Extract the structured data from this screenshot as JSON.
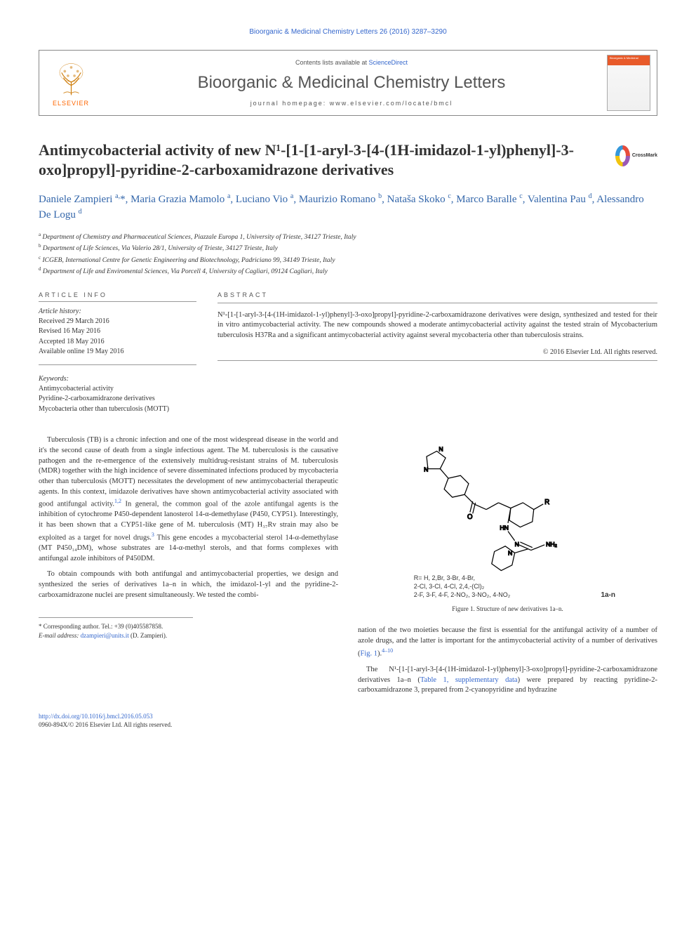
{
  "citation": "Bioorganic & Medicinal Chemistry Letters 26 (2016) 3287–3290",
  "header": {
    "contents_prefix": "Contents lists available at ",
    "contents_link": "ScienceDirect",
    "journal": "Bioorganic & Medicinal Chemistry Letters",
    "homepage_prefix": "journal homepage: ",
    "homepage": "www.elsevier.com/locate/bmcl",
    "logo_text": "ELSEVIER",
    "cover_title1": "Bioorganic & Medicinal",
    "cover_title2": "Chemistry Letters"
  },
  "crossmark_label": "CrossMark",
  "title": "Antimycobacterial activity of new N¹-[1-[1-aryl-3-[4-(1H-imidazol-1-yl)phenyl]-3-oxo]propyl]-pyridine-2-carboxamidrazone derivatives",
  "authors_html": "Daniele Zampieri <sup>a,</sup>*, Maria Grazia Mamolo <sup>a</sup>, Luciano Vio <sup>a</sup>, Maurizio Romano <sup>b</sup>, Nataša Skoko <sup>c</sup>, Marco Baralle <sup>c</sup>, Valentina Pau <sup>d</sup>, Alessandro De Logu <sup>d</sup>",
  "affiliations": [
    {
      "sup": "a",
      "text": "Department of Chemistry and Pharmaceutical Sciences, Piazzale Europa 1, University of Trieste, 34127 Trieste, Italy"
    },
    {
      "sup": "b",
      "text": "Department of Life Sciences, Via Valerio 28/1, University of Trieste, 34127 Trieste, Italy"
    },
    {
      "sup": "c",
      "text": "ICGEB, International Centre for Genetic Engineering and Biotechnology, Padriciano 99, 34149 Trieste, Italy"
    },
    {
      "sup": "d",
      "text": "Department of Life and Enviromental Sciences, Via Porcell 4, University of Cagliari, 09124 Cagliari, Italy"
    }
  ],
  "article_info": {
    "section_label": "ARTICLE INFO",
    "history_label": "Article history:",
    "history": [
      "Received 29 March 2016",
      "Revised 16 May 2016",
      "Accepted 18 May 2016",
      "Available online 19 May 2016"
    ],
    "keywords_label": "Keywords:",
    "keywords": [
      "Antimycobacterial activity",
      "Pyridine-2-carboxamidrazone derivatives",
      "Mycobacteria other than tuberculosis (MOTT)"
    ]
  },
  "abstract": {
    "section_label": "ABSTRACT",
    "text": "N¹-[1-[1-aryl-3-[4-(1H-imidazol-1-yl)phenyl]-3-oxo]propyl]-pyridine-2-carboxamidrazone derivatives were design, synthesized and tested for their in vitro antimycobacterial activity. The new compounds showed a moderate antimycobacterial activity against the tested strain of Mycobacterium tuberculosis H37Ra and a significant antimycobacterial activity against several mycobacteria other than tuberculosis strains.",
    "copyright": "© 2016 Elsevier Ltd. All rights reserved."
  },
  "body": {
    "left_para1": "Tuberculosis (TB) is a chronic infection and one of the most widespread disease in the world and it's the second cause of death from a single infectious agent. The M. tuberculosis is the causative pathogen and the re-emergence of the extensively multidrug-resistant strains of M. tuberculosis (MDR) together with the high incidence of severe disseminated infections produced by mycobacteria other than tuberculosis (MOTT) necessitates the development of new antimycobacterial therapeutic agents. In this context, imidazole derivatives have shown antimycobacterial activity associated with good antifungal activity.",
    "left_para1_ref": "1,2",
    "left_para1_cont": " In general, the common goal of the azole antifungal agents is the inhibition of cytochrome P450-dependent lanosterol 14-α-demethylase (P450, CYP51). Interestingly, it has been shown that a CYP51-like gene of M. tuberculosis (MT) H₃₇Rv strain may also be exploited as a target for novel drugs.",
    "left_para1_ref2": "3",
    "left_para1_cont2": " This gene encodes a mycobacterial sterol 14-α-demethylase (MT P450₁₄DM), whose substrates are 14-α-methyl sterols, and that forms complexes with antifungal azole inhibitors of P450DM.",
    "left_para2": "To obtain compounds with both antifungal and antimycobacterial properties, we design and synthesized the series of derivatives 1a–n in which, the imidazol-1-yl and the pyridine-2-carboxamidrazone nuclei are present simultaneously. We tested the combi-",
    "right_para1": "nation of the two moieties because the first is essential for the antifungal activity of a number of azole drugs, and the latter is important for the antimycobacterial activity of a number of derivatives (",
    "right_fig_link": "Fig. 1",
    "right_para1_cont": ").",
    "right_refs": "4–10",
    "right_para2_a": "The N¹-[1-[1-aryl-3-[4-(1H-imidazol-1-yl)phenyl]-3-oxo]propyl]-pyridine-2-carboxamidrazone derivatives 1a–n (",
    "right_table_link": "Table 1, supplementary data",
    "right_para2_b": ") were prepared by reacting pyridine-2-carboxamidrazone 3, prepared from 2-cyanopyridine and hydrazine"
  },
  "figure": {
    "r_legend_l1": "R= H, 2,Br, 3-Br, 4-Br,",
    "r_legend_l2": "2-Cl, 3-Cl, 4-Cl, 2,4,-(Cl)₂",
    "r_legend_l3": "2-F, 3-F, 4-F, 2-NO₂, 3-NO₂, 4-NO₂",
    "label_1an": "1a-n",
    "caption": "Figure 1. Structure of new derivatives 1a–n."
  },
  "corresponding": {
    "marker": "*",
    "text": "Corresponding author. Tel.: +39 (0)405587858.",
    "email_label": "E-mail address:",
    "email": "dzampieri@units.it",
    "email_author": "(D. Zampieri)."
  },
  "footer": {
    "doi": "http://dx.doi.org/10.1016/j.bmcl.2016.05.053",
    "copyright": "0960-894X/© 2016 Elsevier Ltd. All rights reserved."
  },
  "colors": {
    "link": "#3366cc",
    "author": "#3366aa",
    "elsevier_orange": "#ff6600",
    "text": "#333333",
    "border": "#888888"
  }
}
